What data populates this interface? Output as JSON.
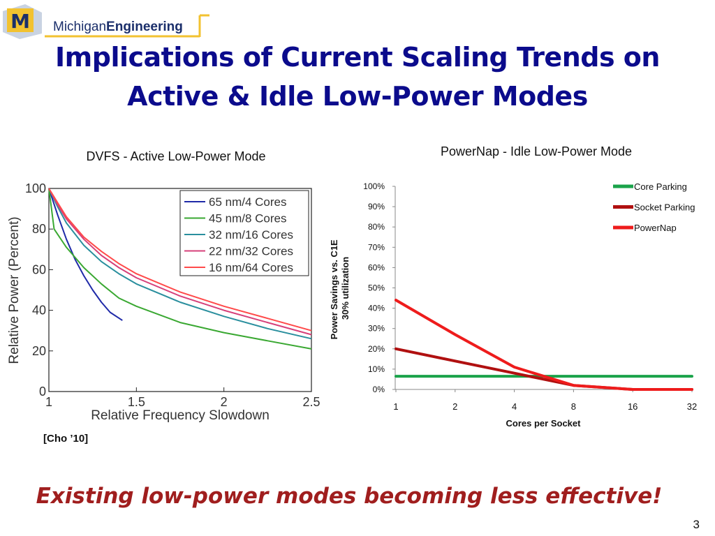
{
  "header": {
    "logo_text_light": "Michigan",
    "logo_text_bold": "Engineering",
    "logo_letter": "M",
    "title_line1": "Implications of Current Scaling Trends on",
    "title_line2": "Active & Idle Low-Power Modes"
  },
  "footer": {
    "citation": "[Cho ’10]",
    "tagline": "Existing low-power modes becoming less effective!",
    "page_number": "3"
  },
  "colors": {
    "title": "#0b0b8c",
    "tagline": "#a01e1e",
    "maize": "#f2c230"
  },
  "chart_data": [
    {
      "type": "line",
      "title": "DVFS - Active Low-Power Mode",
      "xlabel": "Relative Frequency Slowdown",
      "ylabel": "Relative Power (Percent)",
      "xlim": [
        1,
        2.5
      ],
      "ylim": [
        0,
        100
      ],
      "xticks": [
        1,
        1.5,
        2,
        2.5
      ],
      "xtick_labels": [
        "1",
        "1.5",
        "2",
        "2.5"
      ],
      "yticks": [
        0,
        20,
        40,
        60,
        80,
        100
      ],
      "ytick_labels": [
        "0",
        "20",
        "40",
        "60",
        "80",
        "100"
      ],
      "grid": false,
      "legend": "top-right",
      "series": [
        {
          "name": "65 nm/4 Cores",
          "color": "#1f2aa8",
          "points": [
            [
              1,
              100
            ],
            [
              1.05,
              87
            ],
            [
              1.1,
              75
            ],
            [
              1.15,
              65
            ],
            [
              1.2,
              57
            ],
            [
              1.25,
              50
            ],
            [
              1.3,
              44
            ],
            [
              1.35,
              39
            ],
            [
              1.42,
              35
            ]
          ]
        },
        {
          "name": "45 nm/8 Cores",
          "color": "#3aa832",
          "points": [
            [
              1,
              100
            ],
            [
              1.03,
              80
            ],
            [
              1.1,
              71
            ],
            [
              1.2,
              61
            ],
            [
              1.3,
              53
            ],
            [
              1.4,
              46
            ],
            [
              1.5,
              42
            ],
            [
              1.75,
              34
            ],
            [
              2,
              29
            ],
            [
              2.25,
              25
            ],
            [
              2.5,
              21
            ]
          ]
        },
        {
          "name": "32 nm/16 Cores",
          "color": "#2a8f9e",
          "points": [
            [
              1,
              100
            ],
            [
              1.05,
              91
            ],
            [
              1.1,
              83
            ],
            [
              1.2,
              72
            ],
            [
              1.3,
              64
            ],
            [
              1.4,
              58
            ],
            [
              1.5,
              53
            ],
            [
              1.75,
              44
            ],
            [
              2,
              37
            ],
            [
              2.25,
              31
            ],
            [
              2.5,
              26
            ]
          ]
        },
        {
          "name": "22 nm/32 Cores",
          "color": "#d6407a",
          "points": [
            [
              1,
              100
            ],
            [
              1.05,
              92
            ],
            [
              1.1,
              85
            ],
            [
              1.2,
              75
            ],
            [
              1.3,
              67
            ],
            [
              1.4,
              61
            ],
            [
              1.5,
              56
            ],
            [
              1.75,
              47
            ],
            [
              2,
              40
            ],
            [
              2.25,
              34
            ],
            [
              2.5,
              28
            ]
          ]
        },
        {
          "name": "16 nm/64 Cores",
          "color": "#ff4a4a",
          "points": [
            [
              1,
              100
            ],
            [
              1.05,
              93
            ],
            [
              1.1,
              86
            ],
            [
              1.2,
              76
            ],
            [
              1.3,
              69
            ],
            [
              1.4,
              63
            ],
            [
              1.5,
              58
            ],
            [
              1.75,
              49
            ],
            [
              2,
              42
            ],
            [
              2.25,
              36
            ],
            [
              2.5,
              30
            ]
          ]
        }
      ]
    },
    {
      "type": "line",
      "title": "PowerNap - Idle Low-Power Mode",
      "xlabel": "Cores per Socket",
      "ylabel": "Power Savings vs. C1E 30% utilization",
      "ylabel_lines": [
        "Power Savings vs. C1E",
        "30% utilization"
      ],
      "categories": [
        "1",
        "2",
        "4",
        "8",
        "16",
        "32"
      ],
      "ylim": [
        0,
        100
      ],
      "yticks": [
        0,
        10,
        20,
        30,
        40,
        50,
        60,
        70,
        80,
        90,
        100
      ],
      "ytick_labels": [
        "0%",
        "10%",
        "20%",
        "30%",
        "40%",
        "50%",
        "60%",
        "70%",
        "80%",
        "90%",
        "100%"
      ],
      "grid": false,
      "legend": "top-right",
      "series": [
        {
          "name": "Core Parking",
          "color": "#1aa34a",
          "values": [
            6.5,
            6.5,
            6.5,
            6.5,
            6.5,
            6.5
          ]
        },
        {
          "name": "Socket Parking",
          "color": "#b01010",
          "values": [
            20,
            14,
            8,
            2,
            0,
            0
          ]
        },
        {
          "name": "PowerNap",
          "color": "#ee1c1c",
          "values": [
            44,
            27,
            11,
            2,
            0,
            0
          ]
        }
      ]
    }
  ]
}
